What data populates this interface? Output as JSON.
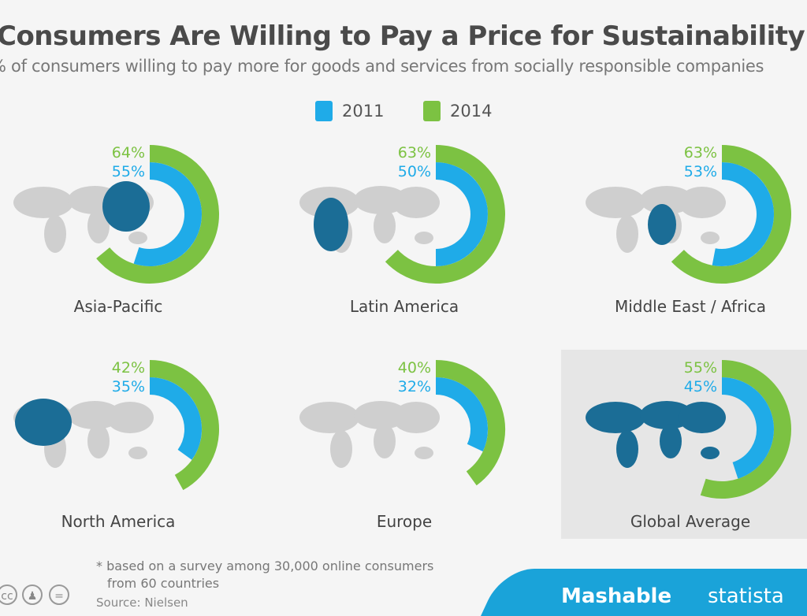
{
  "title": "Consumers Are Willing to Pay a Price for Sustainability",
  "subtitle": "% of consumers willing to pay more for goods and services from socially responsible companies",
  "chart_data": {
    "type": "donut",
    "title": "Consumers Are Willing to Pay a Price for Sustainability",
    "legend": [
      "2011",
      "2014"
    ],
    "colors": {
      "2011": "#1fabe8",
      "2014": "#7cc242"
    },
    "categories": [
      "Asia-Pacific",
      "Latin America",
      "Middle East / Africa",
      "North America",
      "Europe",
      "Global Average"
    ],
    "series": [
      {
        "name": "2011",
        "values": [
          55,
          50,
          53,
          35,
          32,
          45
        ]
      },
      {
        "name": "2014",
        "values": [
          64,
          63,
          63,
          42,
          40,
          55
        ]
      }
    ],
    "labels": {
      "2011": [
        "55%",
        "50%",
        "53%",
        "35%",
        "32%",
        "45%"
      ],
      "2014": [
        "64%",
        "63%",
        "63%",
        "42%",
        "40%",
        "55%"
      ]
    }
  },
  "footnote_line1": "* based on a survey among 30,000 online consumers",
  "footnote_line2": "from 60 countries",
  "source": "Source: Nielsen",
  "license_icons": [
    "cc",
    "by",
    "nd"
  ],
  "brand1": "Mashable",
  "brand2": "statista"
}
